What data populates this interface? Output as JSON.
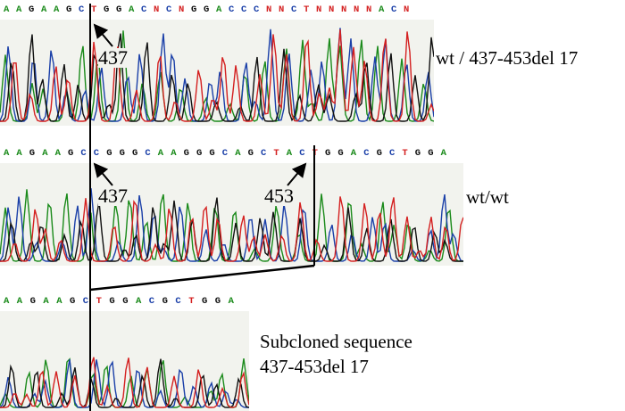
{
  "colors": {
    "A": "#1a8a1a",
    "C": "#1a3fa8",
    "G": "#111111",
    "T": "#d42020",
    "N": "#d42020",
    "panel_bg": "#f2f3ee",
    "line": "#000000"
  },
  "panels": [
    {
      "id": "top",
      "sequence": "AAGAAGCTGGACNCNGGACCCNNCTNNNNNACN",
      "label": "wt / 437-453del 17",
      "markers": [
        "437"
      ]
    },
    {
      "id": "middle",
      "sequence": "AAGAAGCCGGGCAAGGGCAGCTACTGGACGCTGGA",
      "label": "wt/wt",
      "markers": [
        "437",
        "453"
      ]
    },
    {
      "id": "bottom",
      "sequence": "AAGAAGCTGGACGCTGGA",
      "label_line1": "Subcloned sequence",
      "label_line2": "437-453del 17"
    }
  ]
}
